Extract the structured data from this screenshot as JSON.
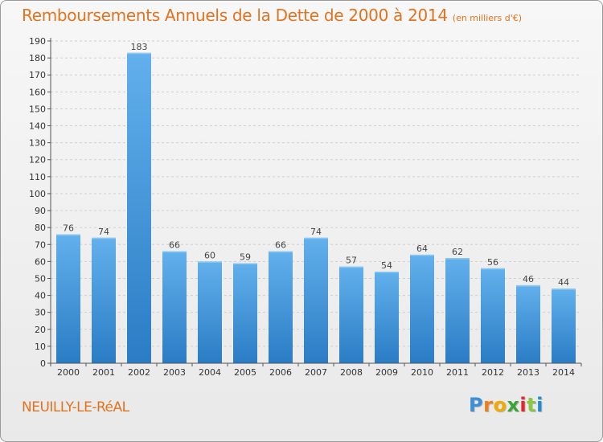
{
  "title": "Remboursements Annuels de la Dette de 2000 à 2014",
  "subtitle": "(en milliers d'€)",
  "town": "NEUILLY-LE-RéAL",
  "logo": {
    "letters": [
      "P",
      "r",
      "o",
      "x",
      "i",
      "t",
      "i"
    ],
    "colors": [
      "#3a8fd6",
      "#ef7d1a",
      "#f2a900",
      "#3aa535",
      "#e4262b",
      "#8dc63f",
      "#1f8dd6"
    ]
  },
  "colors": {
    "title": "#e0731f",
    "bar_light": "#62b0ec",
    "bar_dark": "#2a7cc4",
    "grid": "#cfcfcf"
  },
  "chart_data": {
    "type": "bar",
    "categories": [
      "2000",
      "2001",
      "2002",
      "2003",
      "2004",
      "2005",
      "2006",
      "2007",
      "2008",
      "2009",
      "2010",
      "2011",
      "2012",
      "2013",
      "2014"
    ],
    "values": [
      76,
      74,
      183,
      66,
      60,
      59,
      66,
      74,
      57,
      54,
      64,
      62,
      56,
      46,
      44
    ],
    "ylim": [
      0,
      190
    ],
    "yticks": [
      0,
      10,
      20,
      30,
      40,
      50,
      60,
      70,
      80,
      90,
      100,
      110,
      120,
      130,
      140,
      150,
      160,
      170,
      180,
      190
    ],
    "grid": true,
    "data_labels": true
  }
}
